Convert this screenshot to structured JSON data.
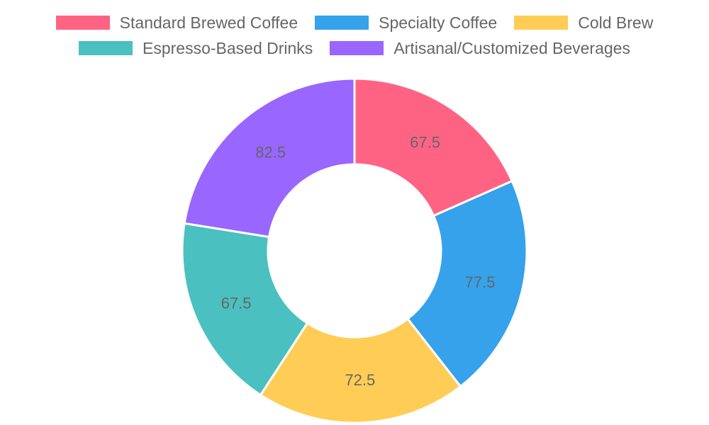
{
  "chart_data": {
    "type": "pie",
    "variant": "doughnut",
    "categories": [
      "Standard Brewed Coffee",
      "Specialty Coffee",
      "Cold Brew",
      "Espresso-Based Drinks",
      "Artisanal/Customized Beverages"
    ],
    "values": [
      67.5,
      77.5,
      72.5,
      67.5,
      82.5
    ],
    "value_labels": [
      "67.5",
      "77.5",
      "72.5",
      "67.5",
      "82.5"
    ],
    "colors": [
      "#ff6384",
      "#36a2eb",
      "#ffcd56",
      "#4bc0c0",
      "#9966ff"
    ],
    "legend_position": "top"
  }
}
